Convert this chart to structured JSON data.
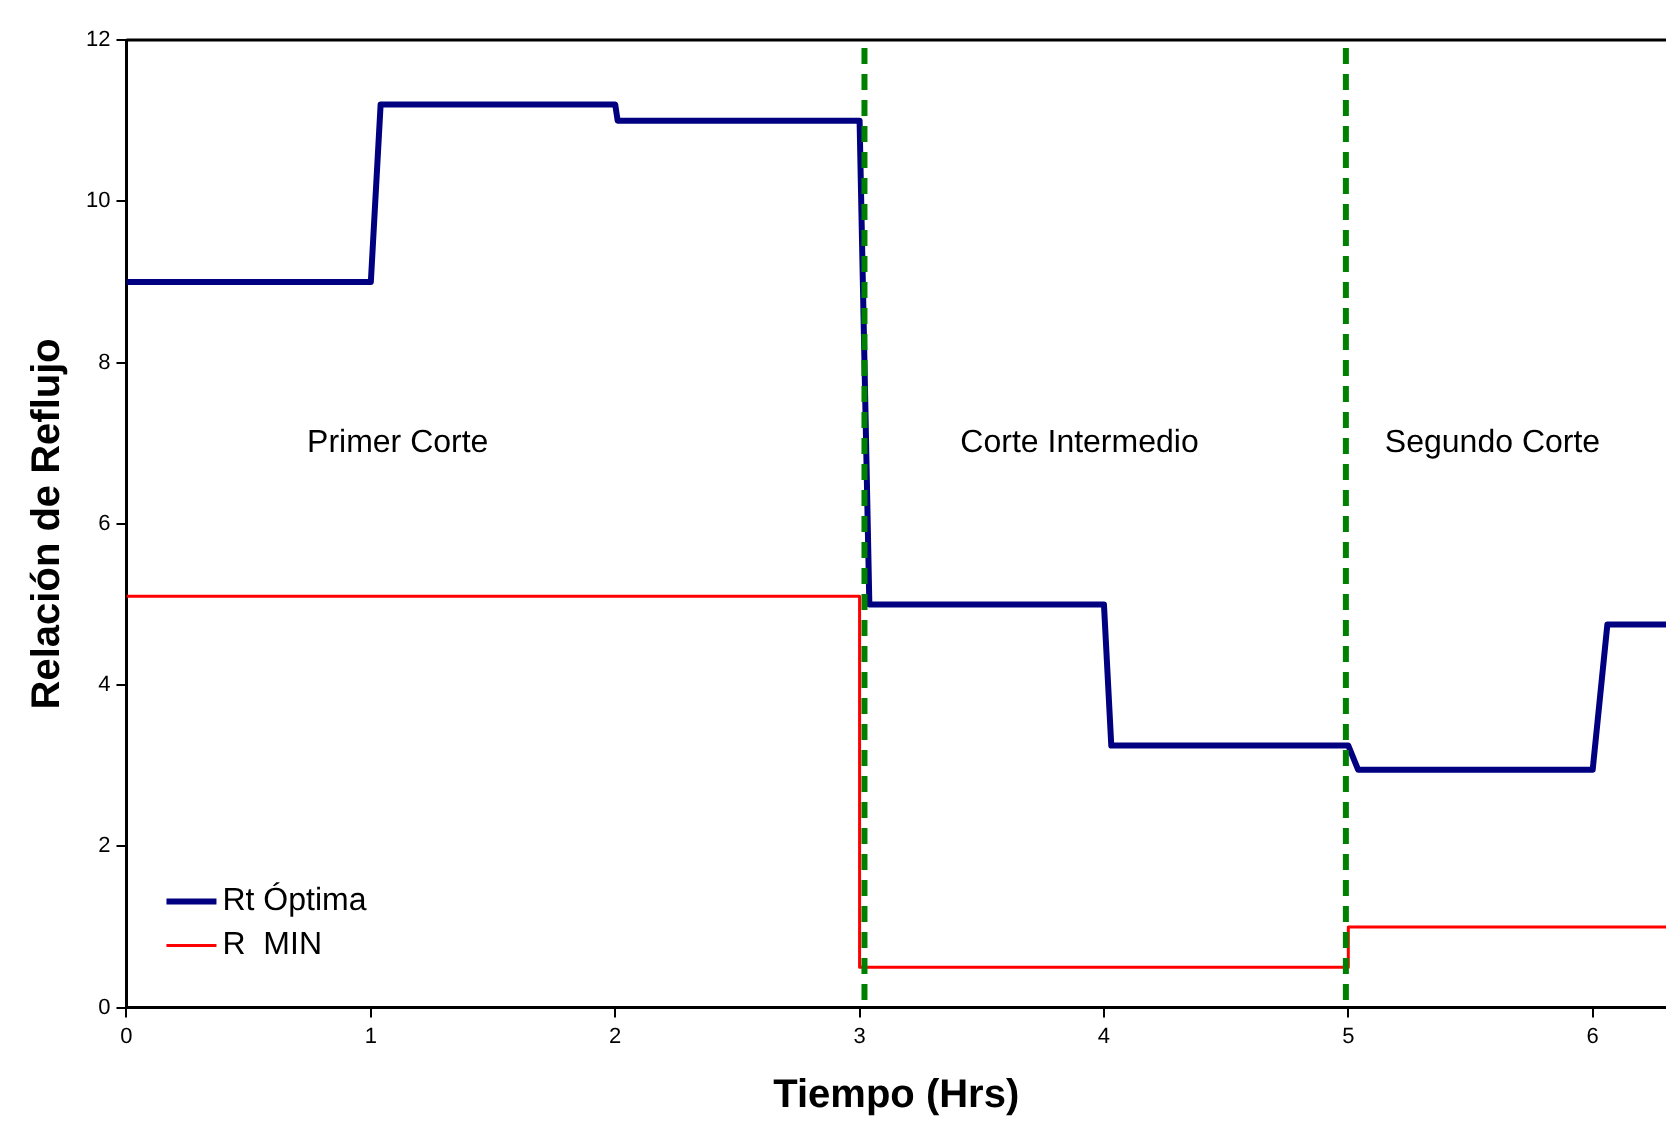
{
  "chart_data": {
    "type": "line",
    "xlabel": "Tiempo (Hrs)",
    "ylabel": "Relación de Reflujo",
    "xlim": [
      0,
      6.3
    ],
    "xticks": [
      0,
      1,
      2,
      3,
      4,
      5,
      6
    ],
    "ylim": [
      0,
      12
    ],
    "yticks": [
      0,
      2,
      4,
      6,
      8,
      10,
      12
    ],
    "grid": false,
    "legend": "bottom left",
    "marker": "none",
    "series": [
      {
        "name": "Rt Óptima",
        "color": "#000080",
        "x": [
          0,
          1.0,
          1.04,
          2.0,
          2.01,
          3.0,
          3.04,
          4.0,
          4.03,
          5.0,
          5.04,
          6.0,
          6.06,
          6.3
        ],
        "values": [
          9,
          9,
          11.2,
          11.2,
          11.0,
          11.0,
          5.0,
          5.0,
          3.25,
          3.25,
          2.95,
          2.95,
          4.75,
          4.75
        ]
      },
      {
        "name": "R  MIN",
        "color": "#ff0000",
        "type": "step",
        "x": [
          0,
          3.0,
          5.0,
          6.3
        ],
        "values": [
          5.1,
          0.5,
          1.0,
          1.0
        ]
      }
    ],
    "ref_lines": [
      {
        "axis": "x",
        "value": 3.02,
        "color": "#008000",
        "line_style": "dashed"
      },
      {
        "axis": "x",
        "value": 4.99,
        "color": "#008000",
        "line_style": "dashed"
      }
    ],
    "annotations": [
      "Primer Corte",
      "Corte Intermedio",
      "Segundo Corte"
    ]
  }
}
